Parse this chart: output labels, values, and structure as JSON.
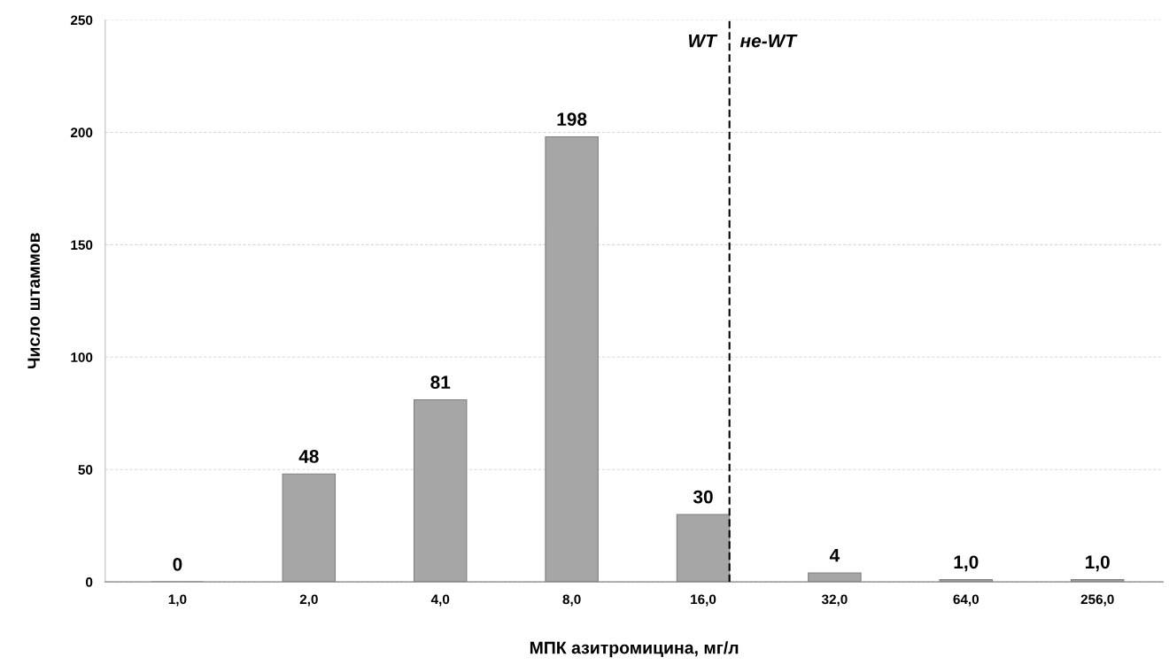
{
  "chart_data": {
    "type": "bar",
    "xlabel": "МПК азитромицина, мг/л",
    "ylabel": "Число штаммов",
    "categories": [
      "1,0",
      "2,0",
      "4,0",
      "8,0",
      "16,0",
      "32,0",
      "64,0",
      "256,0"
    ],
    "values": [
      0,
      48,
      81,
      198,
      30,
      4,
      1,
      1
    ],
    "value_labels": [
      "0",
      "48",
      "81",
      "198",
      "30",
      "4",
      "1,0",
      "1,0"
    ],
    "color": "#a6a6a6",
    "ylim": [
      0,
      250
    ],
    "yticks": [
      0,
      50,
      100,
      150,
      200,
      250
    ],
    "grid": "y",
    "ref_lines": [
      {
        "axis": "x",
        "value": "16,0",
        "label": "не-WT",
        "color": "#000000",
        "line_style": "dashed"
      }
    ],
    "annotations": [
      "WT"
    ]
  }
}
